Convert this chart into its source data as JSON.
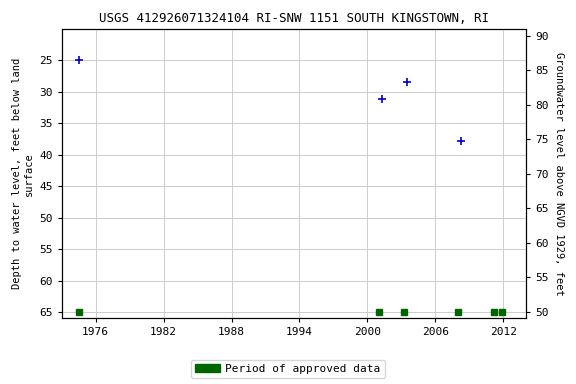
{
  "title": "USGS 412926071324104 RI-SNW 1151 SOUTH KINGSTOWN, RI",
  "title_fontsize": 9,
  "ylabel_left": "Depth to water level, feet below land\nsurface",
  "ylabel_right": "Groundwater level above NGVD 1929, feet",
  "xlim": [
    1973.0,
    2014.0
  ],
  "ylim_left_top": 20,
  "ylim_left_bottom": 66,
  "ylim_right_top": 91,
  "ylim_right_bottom": 49,
  "xticks": [
    1976,
    1982,
    1988,
    1994,
    2000,
    2006,
    2012
  ],
  "yticks_left": [
    25,
    30,
    35,
    40,
    45,
    50,
    55,
    60,
    65
  ],
  "yticks_right": [
    90,
    85,
    80,
    75,
    70,
    65,
    60,
    55,
    50
  ],
  "blue_points_x": [
    1974.5,
    2001.3,
    2003.5,
    2008.3
  ],
  "blue_points_y": [
    25.0,
    31.2,
    28.4,
    37.8
  ],
  "green_squares_x": [
    1974.5,
    2001.0,
    2003.2,
    2008.0,
    2011.2,
    2011.9
  ],
  "green_squares_y": [
    65.0,
    65.0,
    65.0,
    65.0,
    65.0,
    65.0
  ],
  "blue_color": "#0000cc",
  "green_color": "#006600",
  "background_color": "#ffffff",
  "grid_color": "#cccccc",
  "legend_label": "Period of approved data"
}
